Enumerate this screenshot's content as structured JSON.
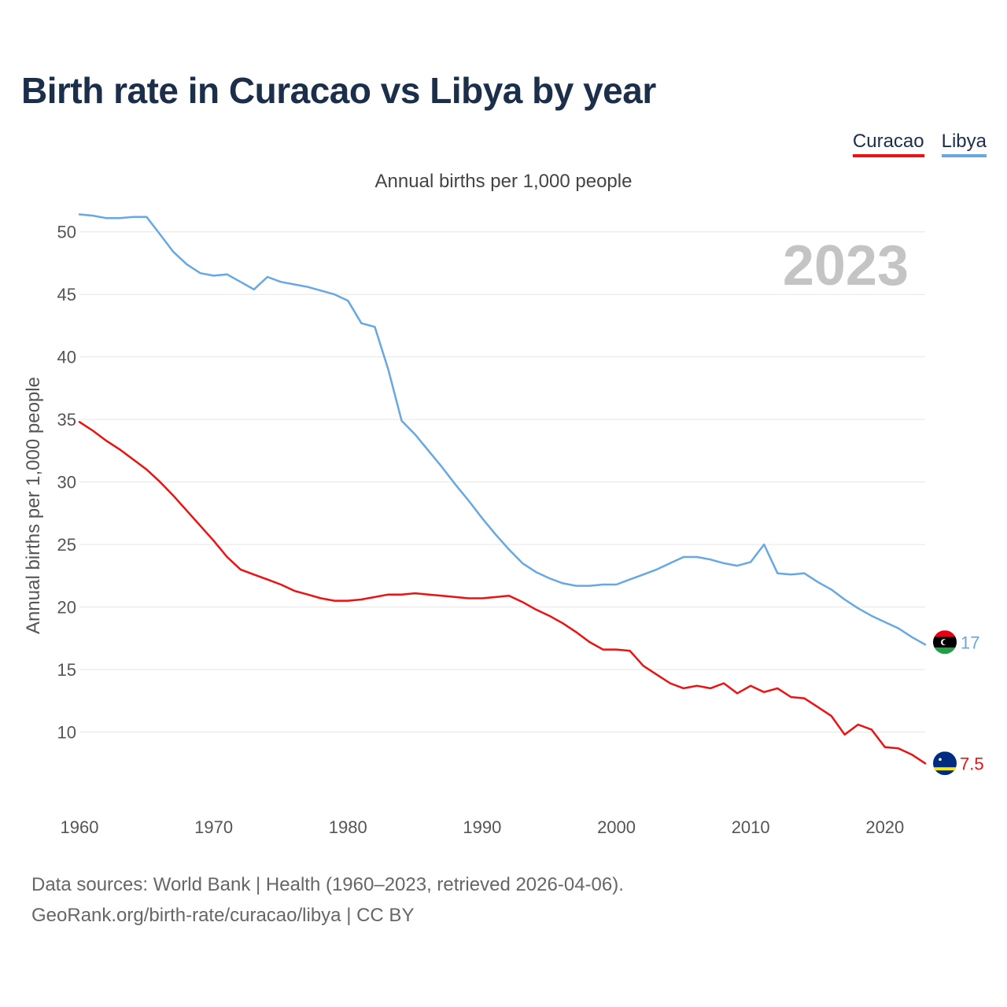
{
  "title": "Birth rate in Curacao vs Libya by year",
  "subtitle": "Annual births per 1,000 people",
  "source_line1": "Data sources: World Bank | Health (1960–2023, retrieved 2026-04-06).",
  "source_line2": "GeoRank.org/birth-rate/curacao/libya | CC BY",
  "chart_data": {
    "type": "line",
    "title": "Birth rate in Curacao vs Libya by year",
    "subtitle": "Annual births per 1,000 people",
    "xlabel": "",
    "ylabel": "Annual births per 1,000 people",
    "year_label": "2023",
    "xlim": [
      1960,
      2023
    ],
    "ylim": [
      5,
      52.5
    ],
    "x_ticks": [
      1960,
      1970,
      1980,
      1990,
      2000,
      2010,
      2020
    ],
    "y_ticks": [
      10,
      15,
      20,
      25,
      30,
      35,
      40,
      45,
      50
    ],
    "legend_position": "top-right",
    "grid": true,
    "x": [
      1960,
      1961,
      1962,
      1963,
      1964,
      1965,
      1966,
      1967,
      1968,
      1969,
      1970,
      1971,
      1972,
      1973,
      1974,
      1975,
      1976,
      1977,
      1978,
      1979,
      1980,
      1981,
      1982,
      1983,
      1984,
      1985,
      1986,
      1987,
      1988,
      1989,
      1990,
      1991,
      1992,
      1993,
      1994,
      1995,
      1996,
      1997,
      1998,
      1999,
      2000,
      2001,
      2002,
      2003,
      2004,
      2005,
      2006,
      2007,
      2008,
      2009,
      2010,
      2011,
      2012,
      2013,
      2014,
      2015,
      2016,
      2017,
      2018,
      2019,
      2020,
      2021,
      2022,
      2023
    ],
    "series": [
      {
        "name": "Curacao",
        "color": "#ee1111",
        "end_label": "7.5",
        "values": [
          34.8,
          34.1,
          33.3,
          32.6,
          31.8,
          31.0,
          30.0,
          28.9,
          27.7,
          26.5,
          25.3,
          24.0,
          23.0,
          22.6,
          22.2,
          21.8,
          21.3,
          21.0,
          20.7,
          20.5,
          20.5,
          20.6,
          20.8,
          21.0,
          21.0,
          21.1,
          21.0,
          20.9,
          20.8,
          20.7,
          20.7,
          20.8,
          20.9,
          20.4,
          19.8,
          19.3,
          18.7,
          18.0,
          17.2,
          16.6,
          16.6,
          16.5,
          15.3,
          14.6,
          13.9,
          13.5,
          13.7,
          13.5,
          13.9,
          13.1,
          13.7,
          13.2,
          13.5,
          12.8,
          12.7,
          12.0,
          11.3,
          9.8,
          10.6,
          10.2,
          8.8,
          8.7,
          8.2,
          7.5
        ]
      },
      {
        "name": "Libya",
        "color": "#66a8e4",
        "end_label": "17",
        "values": [
          51.4,
          51.3,
          51.1,
          51.1,
          51.2,
          51.2,
          49.8,
          48.4,
          47.4,
          46.7,
          46.5,
          46.6,
          46.0,
          45.4,
          46.4,
          46.0,
          45.8,
          45.6,
          45.3,
          45.0,
          44.5,
          42.7,
          42.4,
          39.0,
          34.9,
          33.8,
          32.5,
          31.2,
          29.8,
          28.5,
          27.1,
          25.8,
          24.6,
          23.5,
          22.8,
          22.3,
          21.9,
          21.7,
          21.7,
          21.8,
          21.8,
          22.2,
          22.6,
          23.0,
          23.5,
          24.0,
          24.0,
          23.8,
          23.5,
          23.3,
          23.6,
          25.0,
          22.7,
          22.6,
          22.7,
          22.0,
          21.4,
          20.6,
          19.9,
          19.3,
          18.8,
          18.3,
          17.6,
          17.0
        ]
      }
    ]
  },
  "icons": {
    "libya_flag": "libya-flag-icon",
    "curacao_flag": "curacao-flag-icon"
  }
}
